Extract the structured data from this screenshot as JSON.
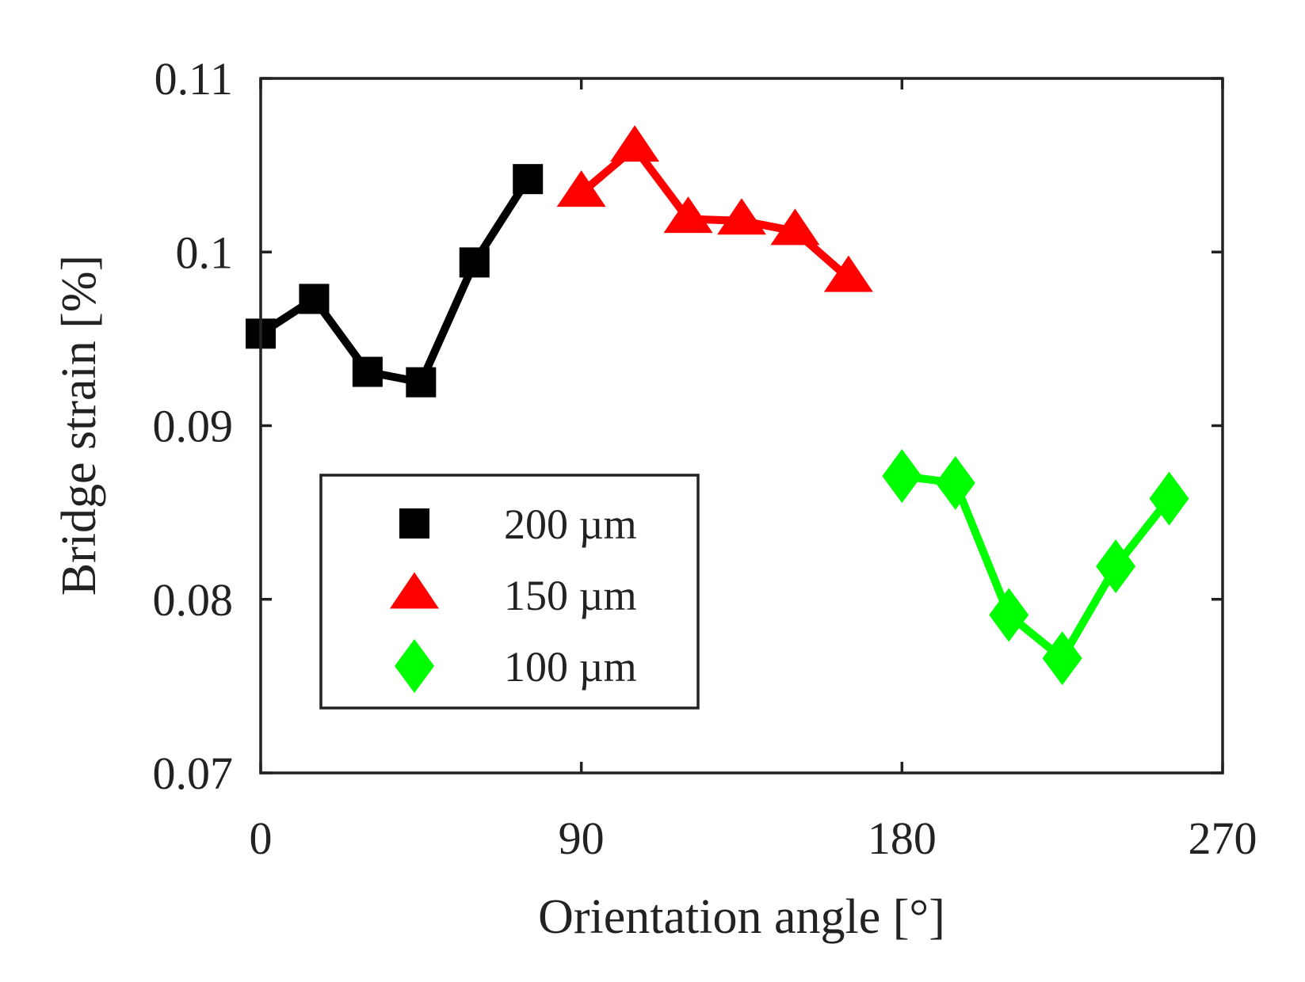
{
  "chart_data": {
    "type": "line",
    "title": "",
    "xlabel": "Orientation angle [°]",
    "ylabel": "Bridge strain [%]",
    "xlim": [
      0,
      270
    ],
    "ylim": [
      0.07,
      0.11
    ],
    "xticks": [
      0,
      90,
      180,
      270
    ],
    "xtick_labels": [
      "0",
      "90",
      "180",
      "270"
    ],
    "yticks": [
      0.07,
      0.08,
      0.09,
      0.1,
      0.11
    ],
    "ytick_labels": [
      "0.07",
      "0.08",
      "0.09",
      "0.1",
      "0.11"
    ],
    "grid": false,
    "legend_position": "lower-left",
    "series": [
      {
        "name": "200 µm",
        "marker": "square",
        "color": "#000000",
        "x": [
          0,
          15,
          30,
          45,
          60,
          75
        ],
        "y": [
          0.0953,
          0.0973,
          0.0931,
          0.0925,
          0.0994,
          0.1042
        ]
      },
      {
        "name": "150 µm",
        "marker": "triangle",
        "color": "#ff0000",
        "x": [
          90,
          105,
          120,
          135,
          150,
          165
        ],
        "y": [
          0.1034,
          0.106,
          0.1019,
          0.1018,
          0.1012,
          0.0985
        ]
      },
      {
        "name": "100 µm",
        "marker": "diamond",
        "color": "#00ff00",
        "x": [
          180,
          195,
          210,
          225,
          240,
          255
        ],
        "y": [
          0.0871,
          0.0867,
          0.0791,
          0.0766,
          0.0819,
          0.0858
        ]
      }
    ]
  }
}
